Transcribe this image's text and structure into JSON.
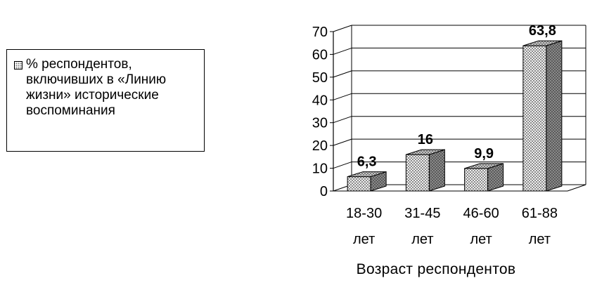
{
  "legend": {
    "label": "% респондентов, включивших в «Линию жизни» исторические воспоминания"
  },
  "chart_data": {
    "type": "bar",
    "categories": [
      "18-30 лет",
      "31-45 лет",
      "46-60 лет",
      "61-88 лет"
    ],
    "category_lines": [
      [
        "18-30",
        "лет"
      ],
      [
        "31-45",
        "лет"
      ],
      [
        "46-60",
        "лет"
      ],
      [
        "61-88",
        "лет"
      ]
    ],
    "series": [
      {
        "name": "% респондентов, включивших в «Линию жизни» исторические воспоминания",
        "values": [
          6.3,
          16,
          9.9,
          63.8
        ]
      }
    ],
    "data_labels": [
      "6,3",
      "16",
      "9,9",
      "63,8"
    ],
    "title": "",
    "xlabel": "Возраст респондентов",
    "ylabel": "",
    "ylim": [
      0,
      70
    ],
    "yticks": [
      0,
      10,
      20,
      30,
      40,
      50,
      60,
      70
    ],
    "grid": true,
    "legend_position": "left",
    "style": "3d-column",
    "colors": {
      "front": "#d9d9d9",
      "side": "#6e6e6e",
      "top": "#a6a6a6"
    }
  }
}
